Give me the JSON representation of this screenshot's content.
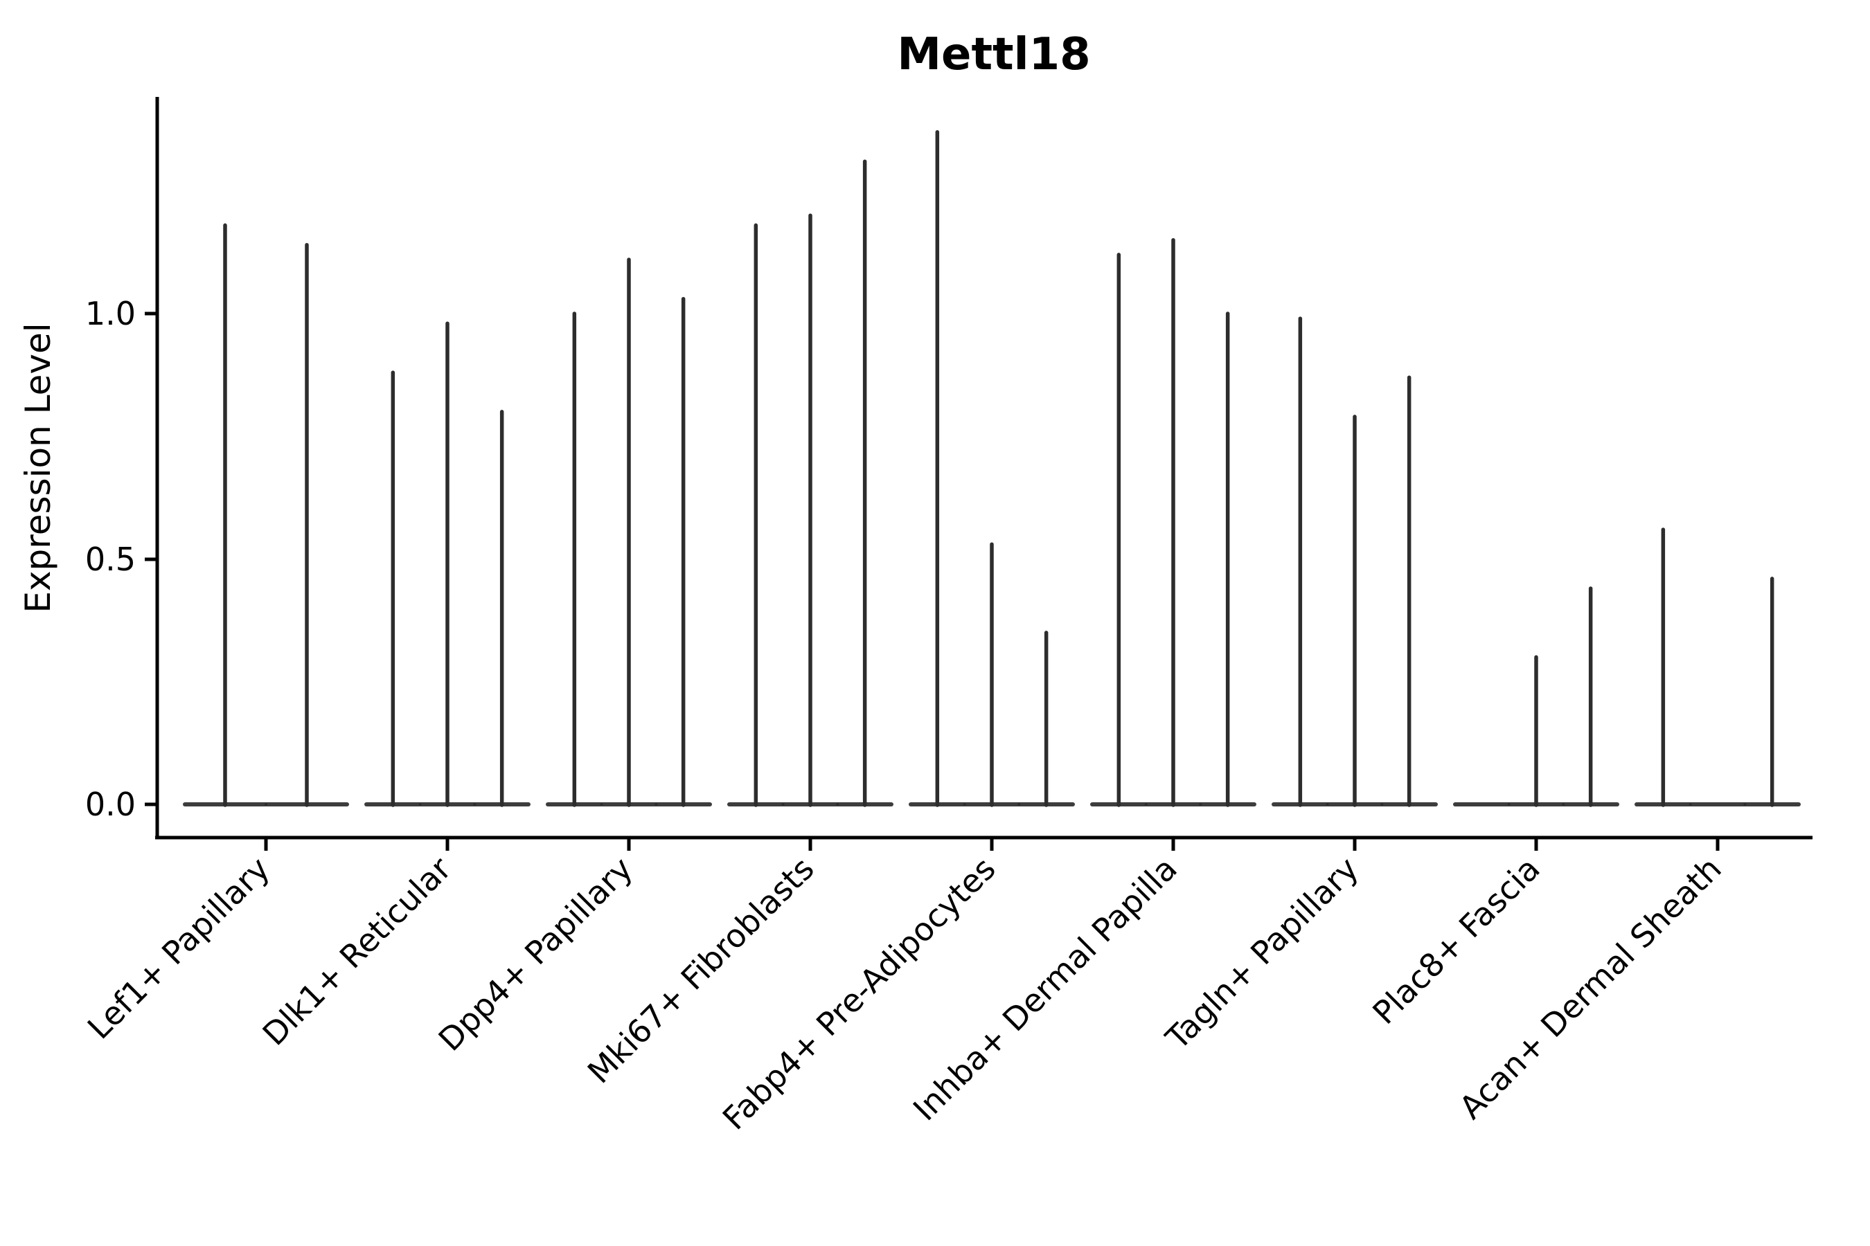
{
  "figure": {
    "title": "Mettl18"
  },
  "chart_data": {
    "type": "violin",
    "title": "Mettl18",
    "xlabel": "",
    "ylabel": "Expression Level",
    "grid": false,
    "legend": null,
    "ylim": [
      -0.07,
      1.44
    ],
    "yticks": [
      0.0,
      0.5,
      1.0
    ],
    "ytick_labels": [
      "0.0",
      "0.5",
      "1.0"
    ],
    "categories": [
      "Lef1+ Papillary",
      "Dlk1+ Reticular",
      "Dpp4+ Papillary",
      "Mki67+ Fibroblasts",
      "Fabp4+ Pre-Adipocytes",
      "Inhba+ Dermal Papilla",
      "Tagln+ Papillary",
      "Plac8+ Fascia",
      "Acan+ Dermal Sheath"
    ],
    "series": [
      {
        "category": "Lef1+ Papillary",
        "violin_maxima": [
          1.18,
          1.14
        ]
      },
      {
        "category": "Dlk1+ Reticular",
        "violin_maxima": [
          0.88,
          0.98,
          0.8
        ]
      },
      {
        "category": "Dpp4+ Papillary",
        "violin_maxima": [
          1.0,
          1.11,
          1.03
        ]
      },
      {
        "category": "Mki67+ Fibroblasts",
        "violin_maxima": [
          1.18,
          1.2,
          1.31
        ]
      },
      {
        "category": "Fabp4+ Pre-Adipocytes",
        "violin_maxima": [
          1.37,
          0.53,
          0.35
        ]
      },
      {
        "category": "Inhba+ Dermal Papilla",
        "violin_maxima": [
          1.12,
          1.15,
          1.0
        ]
      },
      {
        "category": "Tagln+ Papillary",
        "violin_maxima": [
          0.99,
          0.79,
          0.87
        ]
      },
      {
        "category": "Plac8+ Fascia",
        "violin_maxima": [
          0.0,
          0.3,
          0.44
        ]
      },
      {
        "category": "Acan+ Dermal Sheath",
        "violin_maxima": [
          0.56,
          0.0,
          0.46
        ]
      }
    ],
    "style": {
      "violin_color": "#2d2d2d",
      "axis_color": "#000000",
      "background": "#ffffff"
    }
  }
}
